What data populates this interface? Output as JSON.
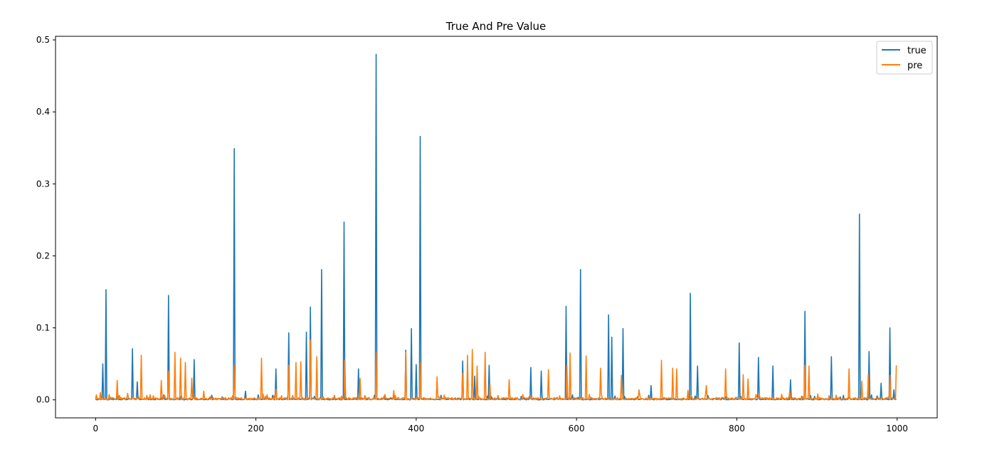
{
  "chart_data": {
    "type": "line",
    "title": "True And Pre Value",
    "xlabel": "",
    "ylabel": "",
    "xlim": [
      -50,
      1050
    ],
    "ylim": [
      -0.025,
      0.505
    ],
    "x_ticks": [
      0,
      200,
      400,
      600,
      800,
      1000
    ],
    "x_tick_labels": [
      "0",
      "200",
      "400",
      "600",
      "800",
      "1000"
    ],
    "y_ticks": [
      0.0,
      0.1,
      0.2,
      0.3,
      0.4,
      0.5
    ],
    "y_tick_labels": [
      "0.0",
      "0.1",
      "0.2",
      "0.3",
      "0.4",
      "0.5"
    ],
    "grid": false,
    "legend_position": "top-right",
    "n_points": 1000,
    "series": [
      {
        "name": "true",
        "color": "#1f77b4",
        "baseline": 0.001,
        "points": [
          [
            9,
            0.05
          ],
          [
            13,
            0.153
          ],
          [
            46,
            0.071
          ],
          [
            52,
            0.025
          ],
          [
            91,
            0.145
          ],
          [
            123,
            0.056
          ],
          [
            173,
            0.349
          ],
          [
            187,
            0.012
          ],
          [
            225,
            0.043
          ],
          [
            241,
            0.093
          ],
          [
            263,
            0.094
          ],
          [
            268,
            0.129
          ],
          [
            282,
            0.181
          ],
          [
            310,
            0.247
          ],
          [
            328,
            0.043
          ],
          [
            350,
            0.48
          ],
          [
            387,
            0.069
          ],
          [
            394,
            0.099
          ],
          [
            400,
            0.049
          ],
          [
            405,
            0.366
          ],
          [
            458,
            0.054
          ],
          [
            473,
            0.033
          ],
          [
            491,
            0.048
          ],
          [
            543,
            0.045
          ],
          [
            556,
            0.04
          ],
          [
            587,
            0.13
          ],
          [
            605,
            0.181
          ],
          [
            640,
            0.118
          ],
          [
            644,
            0.087
          ],
          [
            658,
            0.099
          ],
          [
            693,
            0.02
          ],
          [
            742,
            0.148
          ],
          [
            751,
            0.047
          ],
          [
            803,
            0.079
          ],
          [
            827,
            0.059
          ],
          [
            845,
            0.047
          ],
          [
            867,
            0.028
          ],
          [
            885,
            0.123
          ],
          [
            918,
            0.06
          ],
          [
            953,
            0.258
          ],
          [
            965,
            0.067
          ],
          [
            980,
            0.023
          ],
          [
            991,
            0.1
          ],
          [
            996,
            0.014
          ]
        ]
      },
      {
        "name": "pre",
        "color": "#ff7f0e",
        "baseline": 0.002,
        "points": [
          [
            1,
            0.007
          ],
          [
            6,
            0.01
          ],
          [
            27,
            0.027
          ],
          [
            40,
            0.009
          ],
          [
            57,
            0.062
          ],
          [
            82,
            0.027
          ],
          [
            91,
            0.04
          ],
          [
            99,
            0.066
          ],
          [
            106,
            0.058
          ],
          [
            112,
            0.052
          ],
          [
            120,
            0.03
          ],
          [
            135,
            0.012
          ],
          [
            173,
            0.047
          ],
          [
            207,
            0.058
          ],
          [
            225,
            0.015
          ],
          [
            241,
            0.048
          ],
          [
            250,
            0.052
          ],
          [
            256,
            0.053
          ],
          [
            268,
            0.083
          ],
          [
            276,
            0.06
          ],
          [
            311,
            0.055
          ],
          [
            330,
            0.03
          ],
          [
            350,
            0.067
          ],
          [
            372,
            0.013
          ],
          [
            387,
            0.066
          ],
          [
            405,
            0.052
          ],
          [
            426,
            0.032
          ],
          [
            458,
            0.037
          ],
          [
            464,
            0.062
          ],
          [
            470,
            0.07
          ],
          [
            476,
            0.047
          ],
          [
            486,
            0.066
          ],
          [
            492,
            0.022
          ],
          [
            516,
            0.028
          ],
          [
            565,
            0.042
          ],
          [
            588,
            0.048
          ],
          [
            592,
            0.065
          ],
          [
            612,
            0.061
          ],
          [
            630,
            0.044
          ],
          [
            656,
            0.034
          ],
          [
            678,
            0.014
          ],
          [
            706,
            0.055
          ],
          [
            720,
            0.044
          ],
          [
            725,
            0.043
          ],
          [
            739,
            0.013
          ],
          [
            762,
            0.02
          ],
          [
            786,
            0.043
          ],
          [
            808,
            0.035
          ],
          [
            814,
            0.029
          ],
          [
            866,
            0.013
          ],
          [
            885,
            0.048
          ],
          [
            890,
            0.047
          ],
          [
            940,
            0.043
          ],
          [
            956,
            0.026
          ],
          [
            964,
            0.035
          ],
          [
            991,
            0.034
          ],
          [
            999,
            0.048
          ]
        ]
      }
    ]
  }
}
